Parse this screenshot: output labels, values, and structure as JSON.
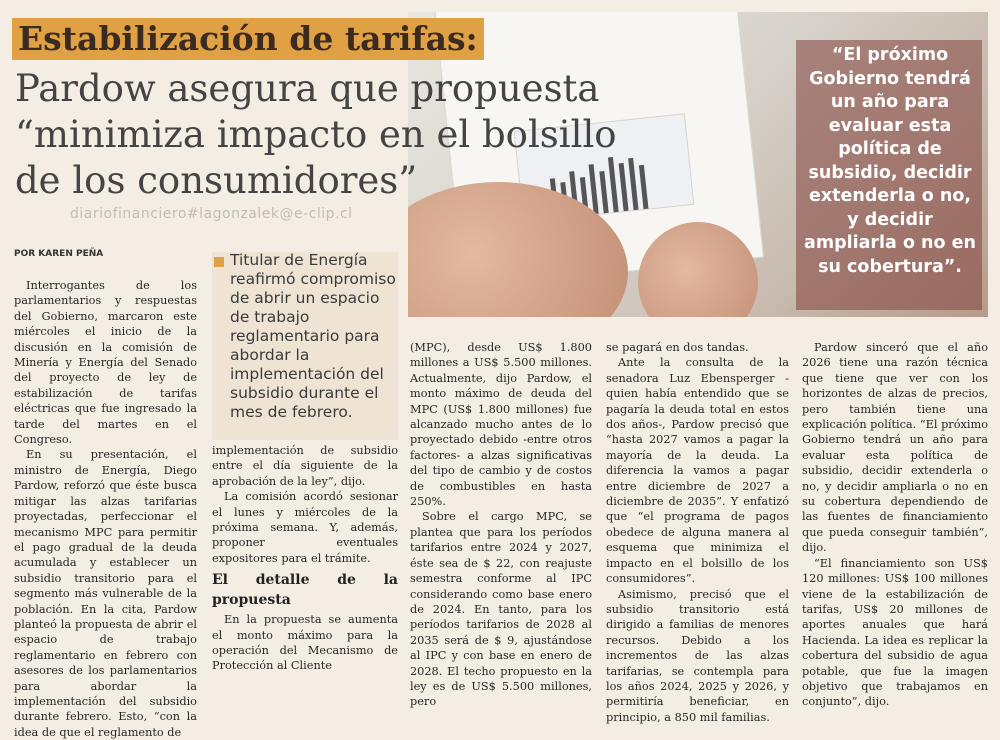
{
  "headline": {
    "kicker": "Estabilización de tarifas:",
    "title": "Pardow asegura que propuesta “minimiza impacto en el bolsillo de los consumidores”"
  },
  "watermark": "diariofinanciero#lagonzalek@e-clip.cl",
  "byline": "POR KAREN PEÑA",
  "deck": "Titular de Energía reafirmó compromiso de abrir un espacio de trabajo reglamentario para abordar la implementación del subsidio durante el mes de febrero.",
  "pull_quote": "“El próximo Gobierno tendrá un año para evaluar esta política de subsidio, decidir extenderla o no, y decidir ampliarla o no en su cobertura”.",
  "colors": {
    "kicker_bg": "#e0a145",
    "deck_bg": "#efe4d4",
    "quote_bg": "#82413c"
  },
  "columns": {
    "col1": [
      "Interrogantes de los parlamentarios y respuestas del Gobierno, marcaron este miércoles el inicio de la discusión en la comisión de Minería y Energía del Senado del proyecto de ley de estabilización de tarifas eléctricas que fue ingresado la tarde del martes en el Congreso.",
      "En su presentación, el ministro de Energía, Diego Pardow, reforzó que éste busca mitigar las alzas tarifarias proyectadas, perfeccionar el mecanismo MPC para permitir el pago gradual de la deuda acumulada y establecer un subsidio transitorio para el segmento más vulnerable de la población. En la cita, Pardow planteó la propuesta de abrir el espacio de trabajo reglamentario en febrero con asesores de los parlamentarios para abordar la implementación del subsidio durante febrero. Esto, “con la idea de que el reglamento de"
    ],
    "col2": [
      "implementación de subsidio entre el día siguiente de la aprobación de la ley”, dijo.",
      "La comisión acordó sesionar el lunes y miércoles de la próxima semana. Y, además, proponer eventuales expositores para el trámite."
    ],
    "col2_subhead": "El detalle de la propuesta",
    "col2_after": [
      "En la propuesta se aumenta el monto máximo para la operación del Mecanismo de Protección al Cliente"
    ],
    "col3": [
      "(MPC), desde US$ 1.800 millones a US$ 5.500 millones. Actualmente, dijo Pardow, el monto máximo de deuda del MPC (US$ 1.800 millones) fue alcanzado mucho antes de lo proyectado debido -entre otros factores- a alzas significativas del tipo de cambio y de costos de combustibles en hasta 250%.",
      "Sobre el cargo MPC, se plantea que para los períodos tarifarios entre 2024 y 2027, éste sea de $ 22, con reajuste semestra conforme al IPC considerando como base enero de 2024. En tanto, para los períodos tarifarios de 2028 al 2035 será de $ 9, ajustándose al IPC y con base en enero de 2028. El techo propuesto en la ley es de US$ 5.500 millones, pero"
    ],
    "col4": [
      "se pagará en dos tandas.",
      "Ante la consulta de la senadora Luz Ebensperger -quien había entendido que se pagaría la deuda total en estos dos años-, Pardow precisó que “hasta 2027 vamos a pagar la mayoría de la deuda. La diferencia la vamos a pagar entre diciembre de 2027 a diciembre de 2035”. Y enfatizó que “el programa de pagos obedece de alguna manera al esquema que minimiza el impacto en el bolsillo de los consumidores”.",
      "Asimismo, precisó que el subsidio transitorio está dirigido a familias de menores recursos. Debido a los incrementos de las alzas tarifarias, se contempla para los años 2024, 2025 y 2026, y permitiría beneficiar, en principio, a 850 mil familias."
    ],
    "col5": [
      "Pardow sinceró que el año 2026 tiene una razón técnica que tiene que ver con los horizontes de alzas de precios, pero también tiene una explicación política. “El próximo Gobierno tendrá un año para evaluar esta política de subsidio, decidir extenderla o no, y decidir ampliarla o no en su cobertura dependiendo de las fuentes de financiamiento que pueda conseguir también”, dijo.",
      "“El financiamiento son US$ 120 millones: US$ 100 millones viene de la estabilización de tarifas, US$ 20 millones de aportes anuales que hará Hacienda. La idea es replicar la cobertura del subsidio de agua potable, que fue la imagen objetivo que trabajamos en conjunto”, dijo."
    ]
  }
}
